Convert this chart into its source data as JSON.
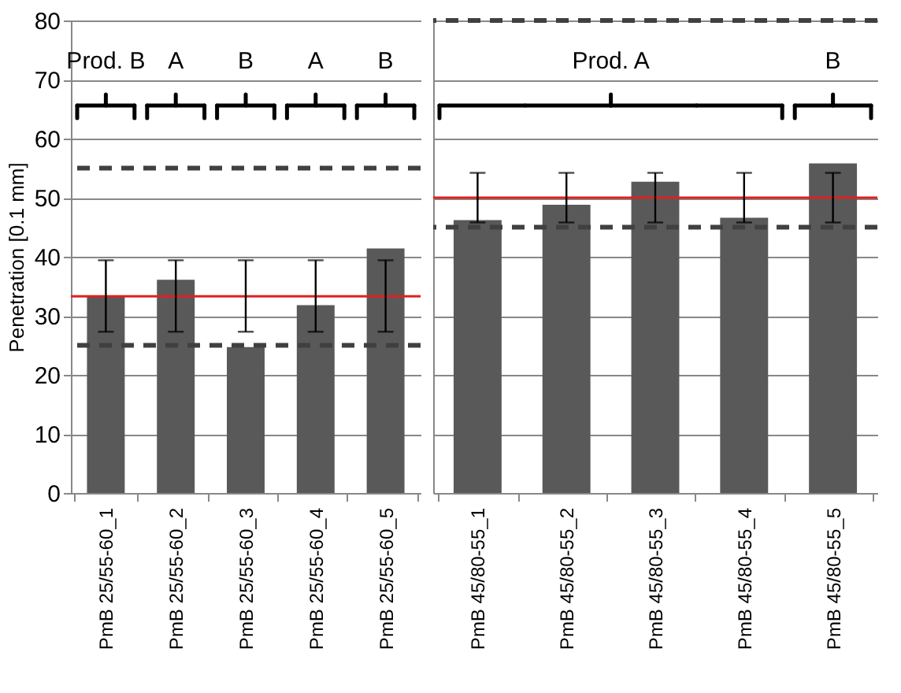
{
  "chart_data": [
    {
      "type": "bar",
      "ylabel": "Penetration [0.1 mm]",
      "categories": [
        "PmB 25/55-60_1",
        "PmB 25/55-60_2",
        "PmB 25/55-60_3",
        "PmB 25/55-60_4",
        "PmB 25/55-60_5"
      ],
      "values": [
        33.3,
        36.1,
        24.7,
        31.8,
        41.4
      ],
      "color": "#595959",
      "errors": [
        [
          27.3,
          39.4
        ],
        [
          27.3,
          39.4
        ],
        [
          27.3,
          39.4
        ],
        [
          27.3,
          39.4
        ],
        [
          27.3,
          39.4
        ]
      ],
      "ylim": [
        0,
        80
      ],
      "yticks": [
        0,
        10,
        20,
        30,
        40,
        50,
        60,
        70,
        80
      ],
      "grid": "y",
      "ref_lines": [
        {
          "axis": "y",
          "value": 33.3,
          "color": "#e02020",
          "line_style": "solid"
        },
        {
          "axis": "y",
          "value": 25,
          "color": "#404040",
          "line_style": "dashed"
        },
        {
          "axis": "y",
          "value": 55,
          "color": "#404040",
          "line_style": "dashed"
        }
      ],
      "annotations": [
        "Prod. B",
        "A",
        "B",
        "A",
        "B"
      ]
    },
    {
      "type": "bar",
      "categories": [
        "PmB 45/80-55_1",
        "PmB 45/80-55_2",
        "PmB 45/80-55_3",
        "PmB 45/80-55_4",
        "PmB 45/80-55_5"
      ],
      "values": [
        46.2,
        48.8,
        52.7,
        46.6,
        55.8
      ],
      "color": "#595959",
      "errors": [
        [
          45.8,
          54.2
        ],
        [
          45.8,
          54.2
        ],
        [
          45.8,
          54.2
        ],
        [
          45.8,
          54.2
        ],
        [
          45.8,
          54.2
        ]
      ],
      "ylim": [
        0,
        80
      ],
      "yticks": [
        0,
        10,
        20,
        30,
        40,
        50,
        60,
        70,
        80
      ],
      "grid": "y",
      "tick_labels": "x",
      "ref_lines": [
        {
          "axis": "y",
          "value": 50,
          "color": "#e02020",
          "line_style": "solid"
        },
        {
          "axis": "y",
          "value": 45,
          "color": "#404040",
          "line_style": "dashed"
        },
        {
          "axis": "y",
          "value": 80,
          "color": "#404040",
          "line_style": "dashed"
        }
      ],
      "annotations": [
        "Prod. A",
        "B"
      ]
    }
  ]
}
